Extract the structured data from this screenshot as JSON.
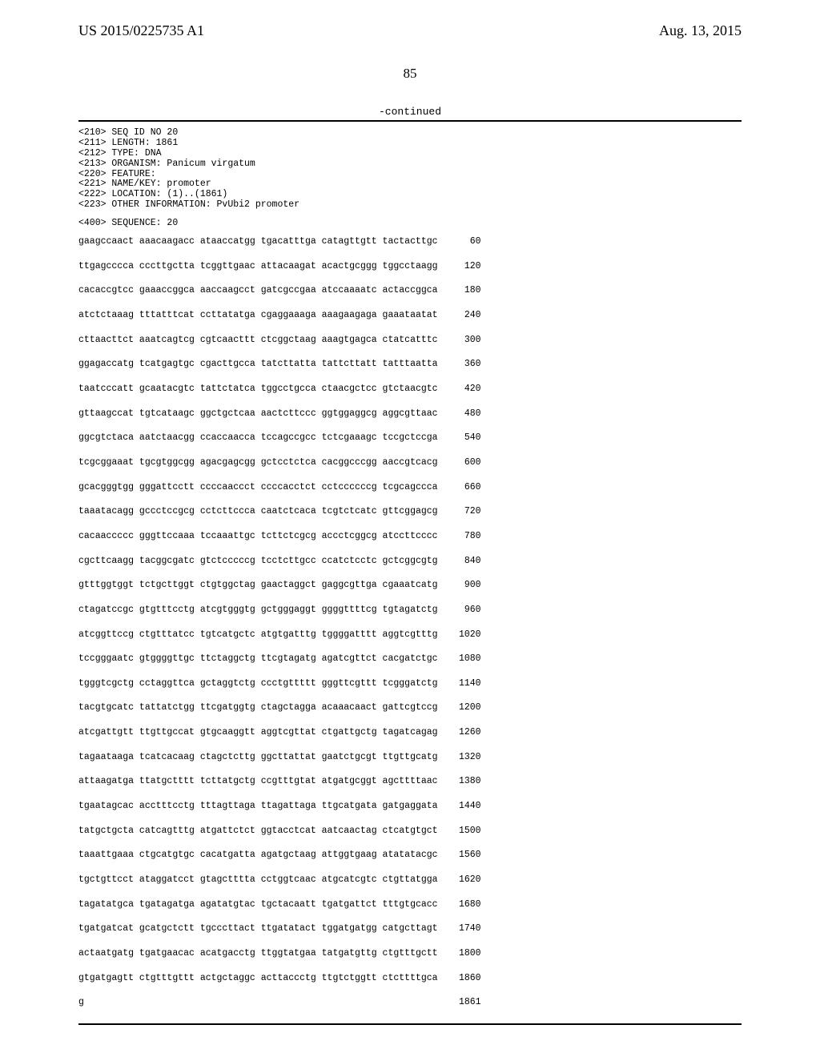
{
  "header": {
    "pubnum": "US 2015/0225735 A1",
    "date": "Aug. 13, 2015",
    "pagenum": "85",
    "continued": "-continued"
  },
  "meta_lines": [
    "<210> SEQ ID NO 20",
    "<211> LENGTH: 1861",
    "<212> TYPE: DNA",
    "<213> ORGANISM: Panicum virgatum",
    "<220> FEATURE:",
    "<221> NAME/KEY: promoter",
    "<222> LOCATION: (1)..(1861)",
    "<223> OTHER INFORMATION: PvUbi2 promoter"
  ],
  "seq_heading": "<400> SEQUENCE: 20",
  "rows": [
    {
      "g": "gaagccaact aaacaagacc ataaccatgg tgacatttga catagttgtt tactacttgc",
      "i": "60"
    },
    {
      "g": "ttgagcccca cccttgctta tcggttgaac attacaagat acactgcggg tggcctaagg",
      "i": "120"
    },
    {
      "g": "cacaccgtcc gaaaccggca aaccaagcct gatcgccgaa atccaaaatc actaccggca",
      "i": "180"
    },
    {
      "g": "atctctaaag tttatttcat ccttatatga cgaggaaaga aaagaagaga gaaataatat",
      "i": "240"
    },
    {
      "g": "cttaacttct aaatcagtcg cgtcaacttt ctcggctaag aaagtgagca ctatcatttc",
      "i": "300"
    },
    {
      "g": "ggagaccatg tcatgagtgc cgacttgcca tatcttatta tattcttatt tatttaatta",
      "i": "360"
    },
    {
      "g": "taatcccatt gcaatacgtc tattctatca tggcctgcca ctaacgctcc gtctaacgtc",
      "i": "420"
    },
    {
      "g": "gttaagccat tgtcataagc ggctgctcaa aactcttccc ggtggaggcg aggcgttaac",
      "i": "480"
    },
    {
      "g": "ggcgtctaca aatctaacgg ccaccaacca tccagccgcc tctcgaaagc tccgctccga",
      "i": "540"
    },
    {
      "g": "tcgcggaaat tgcgtggcgg agacgagcgg gctcctctca cacggcccgg aaccgtcacg",
      "i": "600"
    },
    {
      "g": "gcacgggtgg gggattcctt ccccaaccct ccccacctct cctccccccg tcgcagccca",
      "i": "660"
    },
    {
      "g": "taaatacagg gccctccgcg cctcttccca caatctcaca tcgtctcatc gttcggagcg",
      "i": "720"
    },
    {
      "g": "cacaaccccc gggttccaaa tccaaattgc tcttctcgcg accctcggcg atccttcccc",
      "i": "780"
    },
    {
      "g": "cgcttcaagg tacggcgatc gtctcccccg tcctcttgcc ccatctcctc gctcggcgtg",
      "i": "840"
    },
    {
      "g": "gtttggtggt tctgcttggt ctgtggctag gaactaggct gaggcgttga cgaaatcatg",
      "i": "900"
    },
    {
      "g": "ctagatccgc gtgtttcctg atcgtgggtg gctgggaggt ggggttttcg tgtagatctg",
      "i": "960"
    },
    {
      "g": "atcggttccg ctgtttatcc tgtcatgctc atgtgatttg tggggatttt aggtcgtttg",
      "i": "1020"
    },
    {
      "g": "tccgggaatc gtggggttgc ttctaggctg ttcgtagatg agatcgttct cacgatctgc",
      "i": "1080"
    },
    {
      "g": "tgggtcgctg cctaggttca gctaggtctg ccctgttttt gggttcgttt tcgggatctg",
      "i": "1140"
    },
    {
      "g": "tacgtgcatc tattatctgg ttcgatggtg ctagctagga acaaacaact gattcgtccg",
      "i": "1200"
    },
    {
      "g": "atcgattgtt ttgttgccat gtgcaaggtt aggtcgttat ctgattgctg tagatcagag",
      "i": "1260"
    },
    {
      "g": "tagaataaga tcatcacaag ctagctcttg ggcttattat gaatctgcgt ttgttgcatg",
      "i": "1320"
    },
    {
      "g": "attaagatga ttatgctttt tcttatgctg ccgtttgtat atgatgcggt agcttttaac",
      "i": "1380"
    },
    {
      "g": "tgaatagcac acctttcctg tttagttaga ttagattaga ttgcatgata gatgaggata",
      "i": "1440"
    },
    {
      "g": "tatgctgcta catcagtttg atgattctct ggtacctcat aatcaactag ctcatgtgct",
      "i": "1500"
    },
    {
      "g": "taaattgaaa ctgcatgtgc cacatgatta agatgctaag attggtgaag atatatacgc",
      "i": "1560"
    },
    {
      "g": "tgctgttcct ataggatcct gtagctttta cctggtcaac atgcatcgtc ctgttatgga",
      "i": "1620"
    },
    {
      "g": "tagatatgca tgatagatga agatatgtac tgctacaatt tgatgattct tttgtgcacc",
      "i": "1680"
    },
    {
      "g": "tgatgatcat gcatgctctt tgcccttact ttgatatact tggatgatgg catgcttagt",
      "i": "1740"
    },
    {
      "g": "actaatgatg tgatgaacac acatgacctg ttggtatgaa tatgatgttg ctgtttgctt",
      "i": "1800"
    },
    {
      "g": "gtgatgagtt ctgtttgttt actgctaggc acttaccctg ttgtctggtt ctcttttgca",
      "i": "1860"
    },
    {
      "g": "g",
      "i": "1861"
    }
  ]
}
